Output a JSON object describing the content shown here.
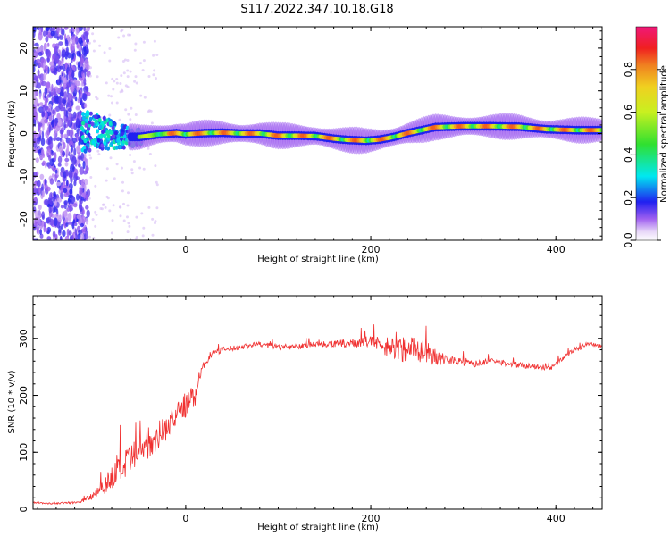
{
  "figure": {
    "title": "S117.2022.347.10.18.G18"
  },
  "chart_data": [
    {
      "type": "heatmap",
      "title": "S117.2022.347.10.18.G18",
      "xlabel": "Height of straight line (km)",
      "ylabel": "Frequency (Hz)",
      "xlim": [
        -165,
        450
      ],
      "ylim": [
        -25,
        25
      ],
      "x_ticks": [
        "0",
        "200",
        "400"
      ],
      "x_tick_values": [
        0,
        200,
        400
      ],
      "y_ticks": [
        "-20",
        "-10",
        "0",
        "10",
        "20"
      ],
      "y_tick_values": [
        -20,
        -10,
        0,
        10,
        20
      ],
      "colorbar": {
        "label": "Normalized spectral amplitude",
        "range": [
          0,
          1
        ],
        "ticks": [
          "0.0",
          "0.2",
          "0.4",
          "0.6",
          "0.8"
        ],
        "tick_values": [
          0.0,
          0.2,
          0.4,
          0.6,
          0.8
        ],
        "colormap": "rainbow (white-purple-blue-cyan-green-yellow-orange-red-pink)"
      },
      "ridge_frequency": {
        "x": [
          -110,
          -90,
          -70,
          -50,
          -30,
          -10,
          0,
          20,
          40,
          60,
          80,
          100,
          120,
          140,
          160,
          175,
          185,
          195,
          210,
          225,
          240,
          255,
          270,
          300,
          330,
          360,
          390,
          420,
          450
        ],
        "y": [
          0.5,
          0.2,
          -0.8,
          -0.8,
          -0.2,
          0.1,
          -0.2,
          0.1,
          0.2,
          0.0,
          0.0,
          -0.5,
          -0.5,
          -0.6,
          -1.2,
          -1.5,
          -1.6,
          -1.7,
          -1.4,
          -0.8,
          0.1,
          0.8,
          1.5,
          1.7,
          1.7,
          1.6,
          1.0,
          0.8,
          0.8
        ]
      }
    },
    {
      "type": "line",
      "xlabel": "Height of straight line (km)",
      "ylabel": "SNR (10 * v/v)",
      "xlim": [
        -165,
        450
      ],
      "ylim": [
        0,
        375
      ],
      "x_ticks": [
        "0",
        "200",
        "400"
      ],
      "x_tick_values": [
        0,
        200,
        400
      ],
      "y_ticks": [
        "0",
        "100",
        "200",
        "300"
      ],
      "y_tick_values": [
        0,
        100,
        200,
        300
      ],
      "series": [
        {
          "color": "#f03030",
          "x": [
            -165,
            -150,
            -130,
            -115,
            -100,
            -90,
            -80,
            -70,
            -60,
            -50,
            -40,
            -30,
            -20,
            -10,
            -5,
            0,
            5,
            10,
            15,
            20,
            30,
            40,
            60,
            80,
            100,
            120,
            140,
            160,
            180,
            200,
            215,
            230,
            245,
            260,
            275,
            290,
            310,
            330,
            350,
            370,
            385,
            395,
            405,
            420,
            435,
            450
          ],
          "y": [
            12,
            10,
            11,
            12,
            25,
            40,
            55,
            70,
            85,
            100,
            115,
            130,
            145,
            165,
            180,
            180,
            190,
            200,
            235,
            255,
            275,
            280,
            285,
            290,
            285,
            285,
            290,
            290,
            292,
            295,
            285,
            280,
            285,
            275,
            265,
            262,
            255,
            260,
            255,
            252,
            248,
            248,
            262,
            280,
            290,
            285
          ],
          "noise": [
            3,
            3,
            3,
            4,
            15,
            30,
            45,
            55,
            55,
            55,
            50,
            50,
            45,
            40,
            35,
            40,
            45,
            40,
            20,
            12,
            10,
            10,
            10,
            10,
            10,
            10,
            10,
            12,
            15,
            20,
            30,
            45,
            50,
            40,
            25,
            15,
            10,
            10,
            10,
            10,
            8,
            8,
            8,
            8,
            8,
            8
          ]
        }
      ]
    }
  ]
}
